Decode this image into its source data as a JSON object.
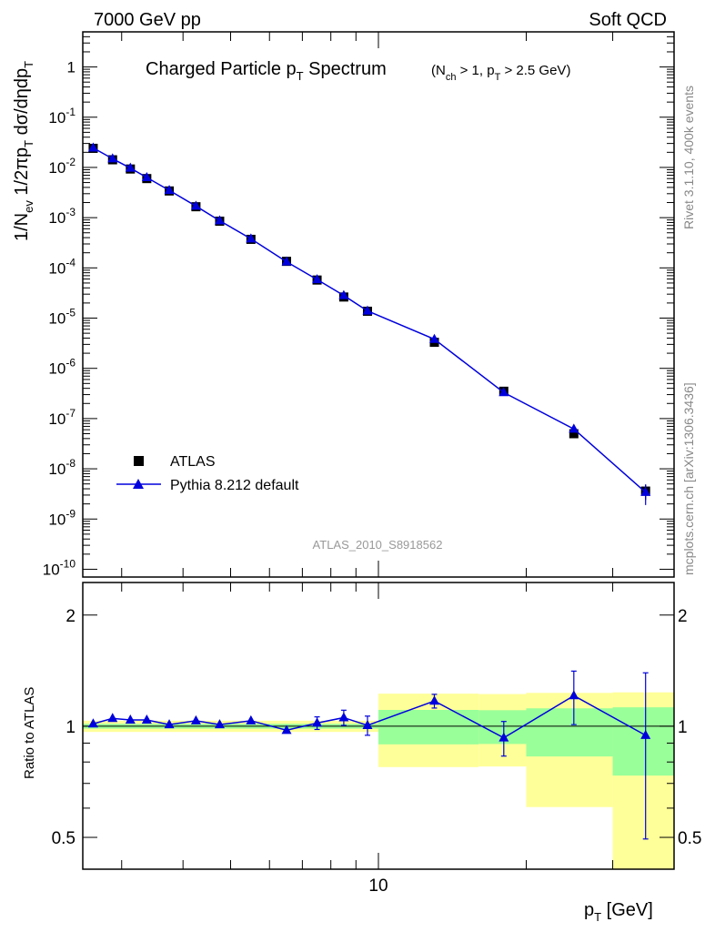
{
  "header": {
    "left": "7000 GeV pp",
    "right": "Soft QCD"
  },
  "side_labels": {
    "rivet": "Rivet 3.1.10,  400k events",
    "mcplots": "mcplots.cern.ch [arXiv:1306.3436]"
  },
  "watermark": "ATLAS_2010_S8918562",
  "title": {
    "main_a": "Charged Particle p",
    "main_sub": "T",
    "main_b": " Spectrum",
    "cut_a": "(N",
    "cut_sub1": "ch",
    "cut_b": " > 1, p",
    "cut_sub2": "T",
    "cut_c": " > 2.5 GeV)"
  },
  "y_axis_top": {
    "p1": "1/N",
    "s1": "ev",
    "p2": " 1/2πp",
    "s2": "T",
    "p3": " dσ/dηdp",
    "s3": "T"
  },
  "y_axis_bottom": "Ratio to ATLAS",
  "x_axis": {
    "p": "p",
    "s": "T",
    "unit": "  [GeV]"
  },
  "legend": {
    "data": "ATLAS",
    "mc": "Pythia 8.212 default"
  },
  "colors": {
    "mc": "#0000dd",
    "data": "#000000",
    "band_inner": "#99ff99",
    "band_outer": "#ffff99"
  },
  "chart_data": [
    {
      "type": "scatter",
      "panel": "main",
      "xscale": "log",
      "yscale": "log",
      "xlim": [
        2.5,
        40
      ],
      "ylim": [
        7e-11,
        5
      ],
      "xticklabels": [
        "10"
      ],
      "yticklabels": [
        "1",
        "10^-1",
        "10^-2",
        "10^-3",
        "10^-4",
        "10^-5",
        "10^-6",
        "10^-7",
        "10^-8",
        "10^-9",
        "10^-10"
      ],
      "series": [
        {
          "name": "ATLAS",
          "x": [
            2.625,
            2.875,
            3.125,
            3.375,
            3.75,
            4.25,
            4.75,
            5.5,
            6.5,
            7.5,
            8.5,
            9.5,
            13.0,
            18.0,
            25.0,
            35.0
          ],
          "y": [
            0.024,
            0.0142,
            0.0093,
            0.006,
            0.0034,
            0.00165,
            0.00085,
            0.00037,
            0.000135,
            5.73e-05,
            2.63e-05,
            1.37e-05,
            3.3e-06,
            3.5e-07,
            5e-08,
            3.6e-09
          ],
          "yerr": [
            0.0005,
            0.0003,
            0.0002,
            0.00012,
            7e-05,
            3e-05,
            1.5e-05,
            7e-06,
            3e-06,
            1.3e-06,
            6e-07,
            4e-07,
            4e-07,
            4e-08,
            8e-09,
            1.2e-09
          ]
        },
        {
          "name": "Pythia 8.212 default",
          "x": [
            2.625,
            2.875,
            3.125,
            3.375,
            3.75,
            4.25,
            4.75,
            5.5,
            6.5,
            7.5,
            8.5,
            9.5,
            13.0,
            18.0,
            25.0,
            35.0
          ],
          "y": [
            0.0245,
            0.0149,
            0.0097,
            0.0063,
            0.0035,
            0.0017,
            0.00087,
            0.00038,
            0.000132,
            5.86e-05,
            2.82e-05,
            1.39e-05,
            3.8e-06,
            3.3e-07,
            6.2e-08,
            3.4e-09
          ],
          "yerr": [
            0.0003,
            0.0002,
            0.0001,
            8e-05,
            5e-05,
            2e-05,
            1e-05,
            5e-06,
            2e-06,
            1e-06,
            6e-07,
            3e-07,
            2e-07,
            3e-08,
            8e-09,
            1.5e-09
          ]
        }
      ]
    },
    {
      "type": "scatter",
      "panel": "ratio",
      "xscale": "log",
      "yscale": "log",
      "xlim": [
        2.5,
        40
      ],
      "ylim": [
        0.41,
        2.45
      ],
      "yticklabels": [
        "0.5",
        "1",
        "2"
      ],
      "xlabel": "p_T [GeV]",
      "ylabel": "Ratio to ATLAS",
      "reference": 1.0,
      "bands": [
        {
          "xlo": 2.5,
          "xhi": 10,
          "inner": [
            0.985,
            1.015
          ],
          "outer": [
            0.965,
            1.035
          ]
        },
        {
          "xlo": 10,
          "xhi": 16,
          "inner": [
            0.893,
            1.107
          ],
          "outer": [
            0.775,
            1.225
          ]
        },
        {
          "xlo": 16,
          "xhi": 20,
          "inner": [
            0.895,
            1.105
          ],
          "outer": [
            0.778,
            1.222
          ]
        },
        {
          "xlo": 20,
          "xhi": 30,
          "inner": [
            0.828,
            1.118
          ],
          "outer": [
            0.604,
            1.231
          ]
        },
        {
          "xlo": 30,
          "xhi": 40,
          "inner": [
            0.735,
            1.125
          ],
          "outer": [
            0.4,
            1.235
          ]
        }
      ],
      "series": [
        {
          "name": "Pythia 8.212 default",
          "x": [
            2.625,
            2.875,
            3.125,
            3.375,
            3.75,
            4.25,
            4.75,
            5.5,
            6.5,
            7.5,
            8.5,
            9.5,
            13.0,
            18.0,
            25.0,
            35.0
          ],
          "y": [
            1.015,
            1.05,
            1.04,
            1.04,
            1.01,
            1.035,
            1.01,
            1.035,
            0.975,
            1.02,
            1.055,
            1.005,
            1.17,
            0.93,
            1.21,
            0.945
          ],
          "yerr": [
            0.012,
            0.012,
            0.012,
            0.012,
            0.012,
            0.012,
            0.012,
            0.012,
            0.012,
            0.04,
            0.05,
            0.06,
            0.05,
            0.1,
            0.2,
            0.45
          ]
        }
      ]
    }
  ]
}
